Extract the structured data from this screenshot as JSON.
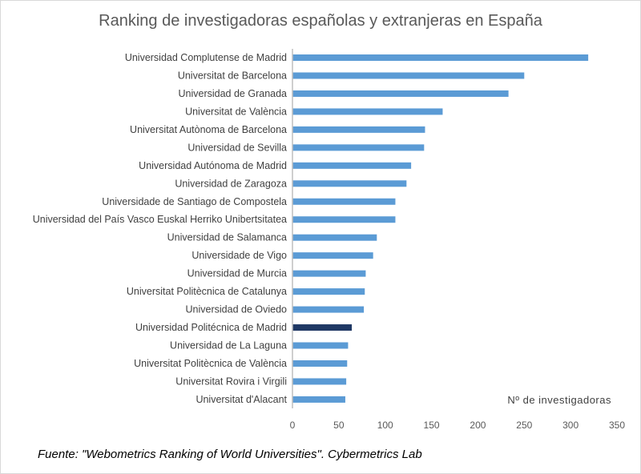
{
  "chart_data": {
    "type": "bar",
    "orientation": "horizontal",
    "title": "Ranking de investigadoras españolas y extranjeras en España",
    "xlabel": "Nº de investigadoras",
    "xlim": [
      0,
      350
    ],
    "xticks": [
      0,
      50,
      100,
      150,
      200,
      250,
      300,
      350
    ],
    "grid": false,
    "categories": [
      "Universidad Complutense de Madrid",
      "Universitat de Barcelona",
      "Universidad de Granada",
      "Universitat de València",
      "Universitat Autònoma de Barcelona",
      "Universidad de Sevilla",
      "Universidad Autónoma de Madrid",
      "Universidad de Zaragoza",
      "Universidade de Santiago de Compostela",
      "Universidad del País Vasco Euskal Herriko Unibertsitatea",
      "Universidad de Salamanca",
      "Universidade de Vigo",
      "Universidad de Murcia",
      "Universitat Politècnica de Catalunya",
      "Universidad de Oviedo",
      "Universidad Politécnica de Madrid",
      "Universidad de La Laguna",
      "Universitat Politècnica de València",
      "Universitat Rovira i Virgili",
      "Universitat d'Alacant"
    ],
    "values": [
      319,
      250,
      233,
      162,
      143,
      142,
      128,
      123,
      111,
      111,
      91,
      87,
      79,
      78,
      77,
      64,
      60,
      59,
      58,
      57
    ],
    "highlight_index": 15,
    "colors": {
      "bar": "#5b9bd5",
      "highlight": "#1f3864",
      "axis": "#bfbfbf"
    }
  },
  "source": "Fuente: \"Webometrics Ranking of World Universities\". Cybermetrics Lab"
}
